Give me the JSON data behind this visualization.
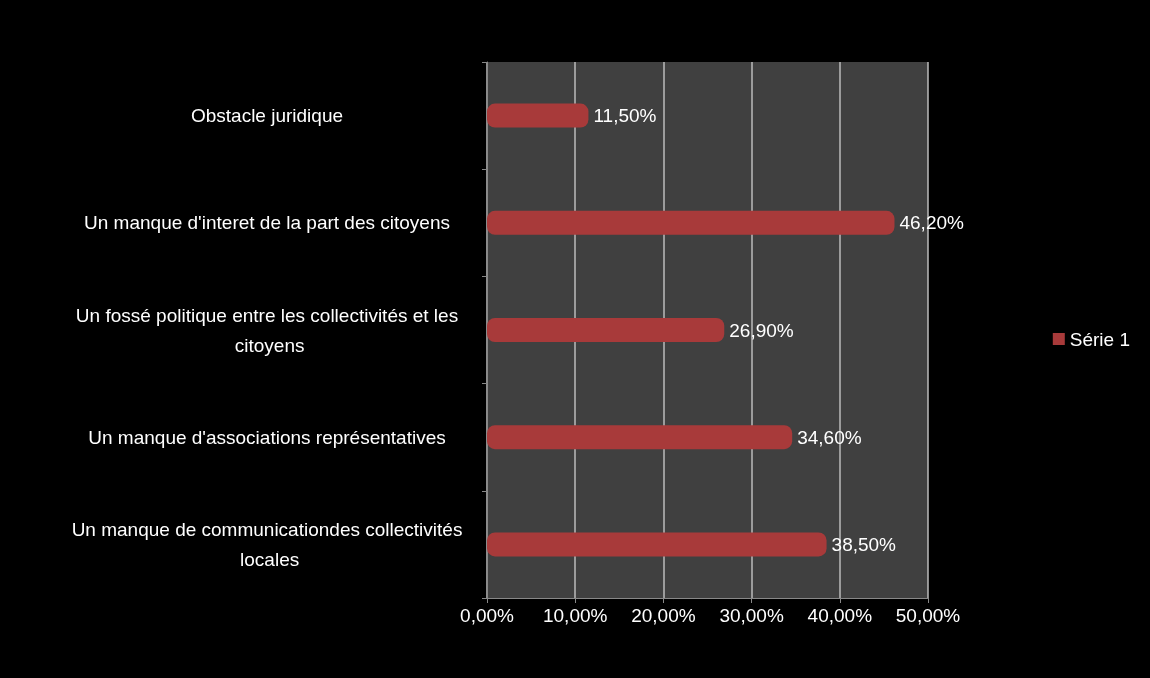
{
  "chart_data": {
    "type": "bar",
    "orientation": "horizontal",
    "categories": [
      "Obstacle juridique",
      "Un manque d'interet de la part des citoyens",
      "Un fossé politique entre les collectivités et les citoyens",
      "Un manque d'associations représentatives",
      "Un manque de communicationdes collectivités locales"
    ],
    "series": [
      {
        "name": "Série 1",
        "color": "#a83a3a",
        "values": [
          11.5,
          46.2,
          26.9,
          34.6,
          38.5
        ],
        "value_labels": [
          "11,50%",
          "46,20%",
          "26,90%",
          "34,60%",
          "38,50%"
        ]
      }
    ],
    "xlim": [
      0,
      50
    ],
    "xticks": [
      {
        "value": 0,
        "label": "0,00%"
      },
      {
        "value": 10,
        "label": "10,00%"
      },
      {
        "value": 20,
        "label": "20,00%"
      },
      {
        "value": 30,
        "label": "30,00%"
      },
      {
        "value": 40,
        "label": "40,00%"
      },
      {
        "value": 50,
        "label": "50,00%"
      }
    ],
    "grid": "x",
    "legend": "right"
  }
}
